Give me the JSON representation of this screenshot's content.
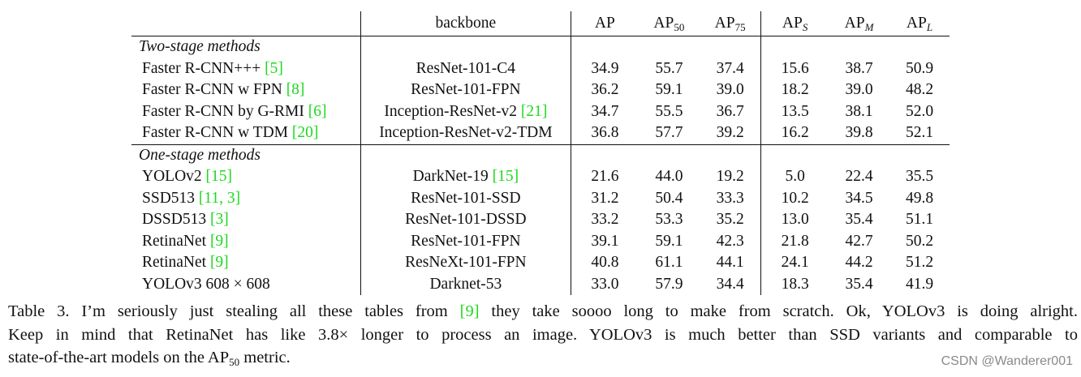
{
  "table": {
    "headers": {
      "backbone": "backbone",
      "ap": "AP",
      "ap50_base": "AP",
      "ap50_sub": "50",
      "ap75_base": "AP",
      "ap75_sub": "75",
      "aps_base": "AP",
      "aps_sub": "S",
      "apm_base": "AP",
      "apm_sub": "M",
      "apl_base": "AP",
      "apl_sub": "L"
    },
    "group1": "Two-stage methods",
    "group2": "One-stage methods",
    "rows": [
      {
        "method": "Faster R-CNN+++ ",
        "ref": "[5]",
        "backbone": "ResNet-101-C4",
        "bref": "",
        "ap": "34.9",
        "ap50": "55.7",
        "ap75": "37.4",
        "aps": "15.6",
        "apm": "38.7",
        "apl": "50.9"
      },
      {
        "method": "Faster R-CNN w FPN ",
        "ref": "[8]",
        "backbone": "ResNet-101-FPN",
        "bref": "",
        "ap": "36.2",
        "ap50": "59.1",
        "ap75": "39.0",
        "aps": "18.2",
        "apm": "39.0",
        "apl": "48.2"
      },
      {
        "method": "Faster R-CNN by G-RMI ",
        "ref": "[6]",
        "backbone": "Inception-ResNet-v2 ",
        "bref": "[21]",
        "ap": "34.7",
        "ap50": "55.5",
        "ap75": "36.7",
        "aps": "13.5",
        "apm": "38.1",
        "apl": "52.0"
      },
      {
        "method": "Faster R-CNN w TDM ",
        "ref": "[20]",
        "backbone": "Inception-ResNet-v2-TDM",
        "bref": "",
        "ap": "36.8",
        "ap50": "57.7",
        "ap75": "39.2",
        "aps": "16.2",
        "apm": "39.8",
        "apl": "52.1"
      },
      {
        "method": "YOLOv2 ",
        "ref": "[15]",
        "backbone": "DarkNet-19 ",
        "bref": "[15]",
        "ap": "21.6",
        "ap50": "44.0",
        "ap75": "19.2",
        "aps": "5.0",
        "apm": "22.4",
        "apl": "35.5"
      },
      {
        "method": "SSD513 ",
        "ref": "[11, 3]",
        "backbone": "ResNet-101-SSD",
        "bref": "",
        "ap": "31.2",
        "ap50": "50.4",
        "ap75": "33.3",
        "aps": "10.2",
        "apm": "34.5",
        "apl": "49.8"
      },
      {
        "method": "DSSD513 ",
        "ref": "[3]",
        "backbone": "ResNet-101-DSSD",
        "bref": "",
        "ap": "33.2",
        "ap50": "53.3",
        "ap75": "35.2",
        "aps": "13.0",
        "apm": "35.4",
        "apl": "51.1"
      },
      {
        "method": "RetinaNet ",
        "ref": "[9]",
        "backbone": "ResNet-101-FPN",
        "bref": "",
        "ap": "39.1",
        "ap50": "59.1",
        "ap75": "42.3",
        "aps": "21.8",
        "apm": "42.7",
        "apl": "50.2"
      },
      {
        "method": "RetinaNet ",
        "ref": "[9]",
        "backbone": "ResNeXt-101-FPN",
        "bref": "",
        "ap": "40.8",
        "ap50": "61.1",
        "ap75": "44.1",
        "aps": "24.1",
        "apm": "44.2",
        "apl": "51.2"
      },
      {
        "method": "YOLOv3 608 × 608",
        "ref": "",
        "backbone": "Darknet-53",
        "bref": "",
        "ap": "33.0",
        "ap50": "57.9",
        "ap75": "34.4",
        "aps": "18.3",
        "apm": "35.4",
        "apl": "41.9"
      }
    ]
  },
  "caption": {
    "line1_pre": "Table 3. I’m seriously just stealing all these tables from ",
    "line1_ref": "[9]",
    "line1_post": " they take soooo long to make from scratch. Ok, YOLOv3 is doing alright.",
    "line2": "Keep in mind that RetinaNet has like 3.8× longer to process an image. YOLOv3 is much better than SSD variants and comparable to",
    "line3_pre": "state-of-the-art models on the AP",
    "line3_sub": "50",
    "line3_post": " metric."
  },
  "watermark": "CSDN @Wanderer001"
}
